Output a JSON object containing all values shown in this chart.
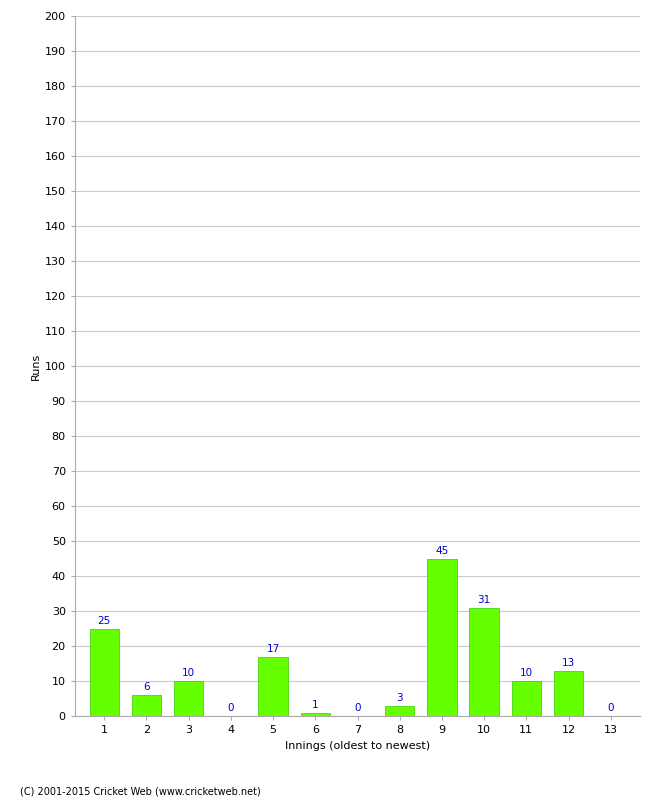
{
  "innings": [
    1,
    2,
    3,
    4,
    5,
    6,
    7,
    8,
    9,
    10,
    11,
    12,
    13
  ],
  "runs": [
    25,
    6,
    10,
    0,
    17,
    1,
    0,
    3,
    45,
    31,
    10,
    13,
    0
  ],
  "bar_color": "#66ff00",
  "bar_edge_color": "#33cc00",
  "label_color": "#0000cc",
  "xlabel": "Innings (oldest to newest)",
  "ylabel": "Runs",
  "ylim": [
    0,
    200
  ],
  "yticks": [
    0,
    10,
    20,
    30,
    40,
    50,
    60,
    70,
    80,
    90,
    100,
    110,
    120,
    130,
    140,
    150,
    160,
    170,
    180,
    190,
    200
  ],
  "footer": "(C) 2001-2015 Cricket Web (www.cricketweb.net)",
  "background_color": "#ffffff",
  "grid_color": "#cccccc"
}
